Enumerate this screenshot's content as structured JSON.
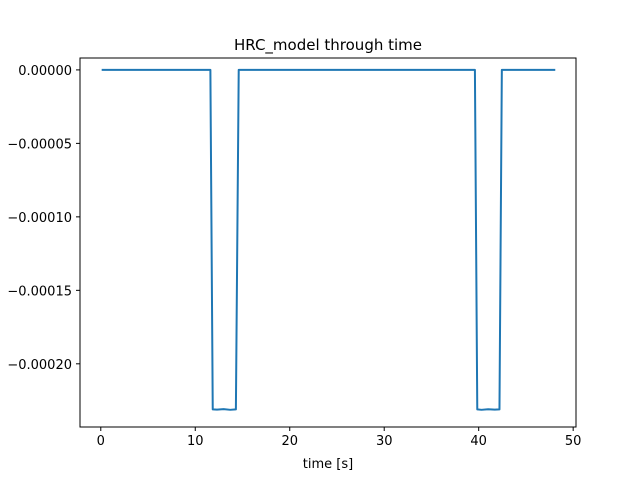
{
  "chart_data": {
    "type": "line",
    "title": "HRC_model through time",
    "xlabel": "time [s]",
    "ylabel": "",
    "xlim": [
      -2.2,
      50.3
    ],
    "ylim": [
      -0.000243,
      8.1e-06
    ],
    "xticks": [
      0,
      10,
      20,
      30,
      40,
      50
    ],
    "xtick_labels": [
      "0",
      "10",
      "20",
      "30",
      "40",
      "50"
    ],
    "yticks": [
      0.0,
      -5e-05,
      -0.0001,
      -0.00015,
      -0.0002
    ],
    "ytick_labels": [
      "0.00000",
      "−0.00005",
      "−0.00010",
      "−0.00015",
      "−0.00020"
    ],
    "grid": false,
    "legend": "none",
    "colors": {
      "line": "#1f77b4",
      "axes": "#000000",
      "background": "#ffffff"
    },
    "series": [
      {
        "x": [
          0.2,
          11.6,
          11.85,
          12.3,
          13.0,
          13.7,
          14.3,
          14.6,
          20.0,
          25.0,
          30.0,
          35.0,
          39.6,
          39.85,
          40.3,
          41.0,
          41.7,
          42.2,
          42.45,
          48.0
        ],
        "y": [
          0.0,
          0.0,
          -0.000231,
          -0.0002312,
          -0.0002308,
          -0.0002313,
          -0.000231,
          0.0,
          0.0,
          0.0,
          0.0,
          0.0,
          0.0,
          -0.000231,
          -0.0002313,
          -0.0002309,
          -0.0002312,
          -0.000231,
          0.0,
          0.0
        ]
      }
    ]
  }
}
